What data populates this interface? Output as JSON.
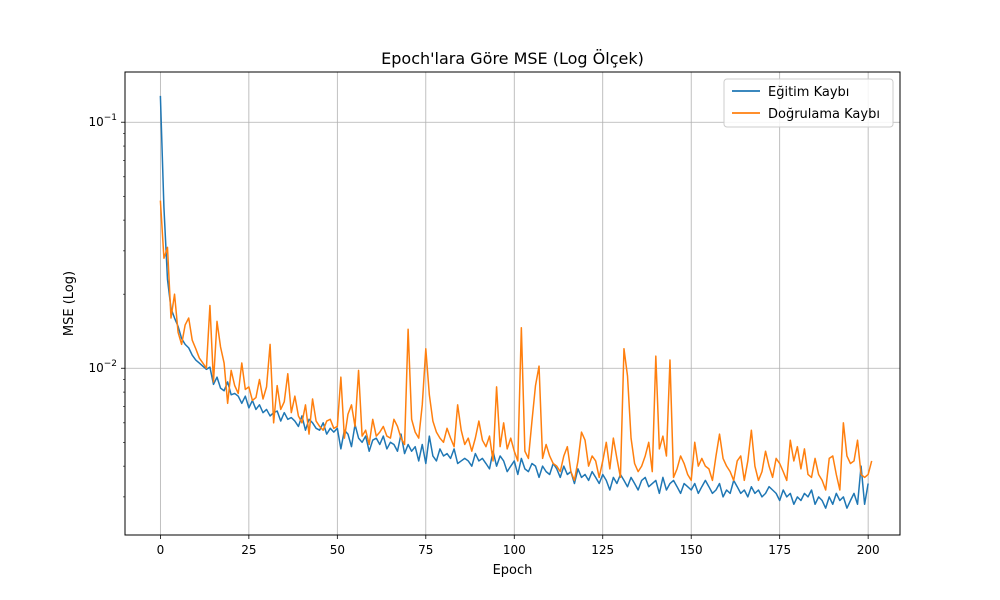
{
  "chart_data": {
    "type": "line",
    "title": "Epoch'lara Göre MSE (Log Ölçek)",
    "xlabel": "Epoch",
    "ylabel": "MSE (Log)",
    "xlim": [
      -10,
      209
    ],
    "ylim": [
      0.0021,
      0.16
    ],
    "yscale": "log",
    "grid": true,
    "legend_position": "top-right",
    "x_ticks": [
      0,
      25,
      50,
      75,
      100,
      125,
      150,
      175,
      200
    ],
    "x_tick_labels": [
      "0",
      "25",
      "50",
      "75",
      "100",
      "125",
      "150",
      "175",
      "200"
    ],
    "y_ticks": [
      0.01,
      0.1
    ],
    "y_tick_labels": [
      {
        "base": "10",
        "exp": "−2"
      },
      {
        "base": "10",
        "exp": "−1"
      }
    ],
    "series": [
      {
        "name": "Eğitim Kaybı",
        "color": "#1f77b4",
        "x_start": 0,
        "values": [
          0.128,
          0.045,
          0.023,
          0.0175,
          0.016,
          0.0148,
          0.0132,
          0.0125,
          0.0121,
          0.0113,
          0.0108,
          0.0105,
          0.0102,
          0.0099,
          0.0101,
          0.0086,
          0.0092,
          0.0083,
          0.0081,
          0.0088,
          0.0078,
          0.0079,
          0.0077,
          0.0072,
          0.0077,
          0.0069,
          0.0074,
          0.0068,
          0.0071,
          0.0066,
          0.0068,
          0.0064,
          0.0066,
          0.0067,
          0.0061,
          0.0066,
          0.0062,
          0.0063,
          0.0061,
          0.0058,
          0.0064,
          0.0056,
          0.0062,
          0.006,
          0.0057,
          0.0056,
          0.006,
          0.0054,
          0.0057,
          0.0055,
          0.0057,
          0.0047,
          0.0056,
          0.0054,
          0.0048,
          0.0059,
          0.0052,
          0.005,
          0.0053,
          0.0046,
          0.0051,
          0.0052,
          0.0049,
          0.0053,
          0.0047,
          0.005,
          0.0049,
          0.0046,
          0.0054,
          0.0045,
          0.0049,
          0.0046,
          0.0048,
          0.0042,
          0.0049,
          0.0041,
          0.0053,
          0.0044,
          0.0042,
          0.0047,
          0.0044,
          0.0045,
          0.0043,
          0.0047,
          0.0041,
          0.0042,
          0.0043,
          0.0042,
          0.004,
          0.0045,
          0.0042,
          0.0043,
          0.0041,
          0.0039,
          0.0046,
          0.004,
          0.0044,
          0.0042,
          0.0038,
          0.004,
          0.0042,
          0.0037,
          0.0043,
          0.0039,
          0.0038,
          0.0041,
          0.004,
          0.0036,
          0.004,
          0.0038,
          0.0037,
          0.0041,
          0.0039,
          0.0036,
          0.004,
          0.0037,
          0.0038,
          0.0034,
          0.0039,
          0.0036,
          0.0037,
          0.0035,
          0.0038,
          0.0036,
          0.0034,
          0.0037,
          0.0035,
          0.0032,
          0.0036,
          0.0034,
          0.0037,
          0.0035,
          0.0033,
          0.0036,
          0.0034,
          0.0032,
          0.0035,
          0.0036,
          0.0033,
          0.0034,
          0.0035,
          0.0031,
          0.0036,
          0.0032,
          0.0034,
          0.0035,
          0.0033,
          0.0031,
          0.0034,
          0.0033,
          0.0032,
          0.0034,
          0.0031,
          0.0033,
          0.0035,
          0.0033,
          0.0031,
          0.0032,
          0.0034,
          0.003,
          0.0032,
          0.0031,
          0.0035,
          0.0033,
          0.0031,
          0.0032,
          0.003,
          0.0033,
          0.0031,
          0.0032,
          0.003,
          0.0031,
          0.0033,
          0.0032,
          0.0031,
          0.0029,
          0.0032,
          0.003,
          0.0031,
          0.0028,
          0.003,
          0.0029,
          0.0031,
          0.003,
          0.0032,
          0.0028,
          0.003,
          0.0029,
          0.0027,
          0.003,
          0.0028,
          0.0031,
          0.0029,
          0.003,
          0.0027,
          0.0029,
          0.0031,
          0.0028,
          0.004,
          0.0028,
          0.0034
        ]
      },
      {
        "name": "Doğrulama Kaybı",
        "color": "#ff7f0e",
        "x_start": 0,
        "values": [
          0.048,
          0.028,
          0.031,
          0.016,
          0.02,
          0.014,
          0.0125,
          0.015,
          0.016,
          0.013,
          0.012,
          0.011,
          0.0105,
          0.01,
          0.018,
          0.0088,
          0.0155,
          0.0122,
          0.0105,
          0.0072,
          0.0098,
          0.0085,
          0.0079,
          0.0105,
          0.0082,
          0.0084,
          0.0074,
          0.0076,
          0.009,
          0.0075,
          0.0084,
          0.0125,
          0.006,
          0.0085,
          0.0068,
          0.0073,
          0.0095,
          0.0066,
          0.0077,
          0.0064,
          0.006,
          0.0071,
          0.0054,
          0.0075,
          0.0061,
          0.0058,
          0.0056,
          0.0061,
          0.0062,
          0.0057,
          0.0058,
          0.0092,
          0.0052,
          0.0065,
          0.0071,
          0.0058,
          0.0098,
          0.0053,
          0.0056,
          0.0049,
          0.0062,
          0.0053,
          0.0055,
          0.0058,
          0.0053,
          0.0052,
          0.0062,
          0.0058,
          0.0052,
          0.0049,
          0.0144,
          0.0062,
          0.0055,
          0.0052,
          0.0071,
          0.012,
          0.0078,
          0.0061,
          0.0055,
          0.0052,
          0.005,
          0.0057,
          0.0052,
          0.0048,
          0.0071,
          0.0056,
          0.0049,
          0.0052,
          0.0046,
          0.0052,
          0.0061,
          0.0051,
          0.0048,
          0.0053,
          0.0042,
          0.0084,
          0.0048,
          0.006,
          0.0047,
          0.0052,
          0.0046,
          0.0042,
          0.0146,
          0.0046,
          0.0043,
          0.0061,
          0.0085,
          0.0102,
          0.0043,
          0.0049,
          0.0044,
          0.0041,
          0.004,
          0.0038,
          0.0044,
          0.0048,
          0.0038,
          0.0035,
          0.0042,
          0.0055,
          0.0051,
          0.004,
          0.0044,
          0.0042,
          0.0036,
          0.0042,
          0.005,
          0.0039,
          0.0052,
          0.0043,
          0.0036,
          0.012,
          0.0093,
          0.0052,
          0.0041,
          0.0038,
          0.004,
          0.0044,
          0.005,
          0.0038,
          0.0112,
          0.0047,
          0.0053,
          0.0044,
          0.0108,
          0.0036,
          0.0039,
          0.0044,
          0.0041,
          0.0037,
          0.0035,
          0.005,
          0.004,
          0.0043,
          0.004,
          0.0039,
          0.0035,
          0.0044,
          0.0054,
          0.0043,
          0.004,
          0.0038,
          0.0035,
          0.0042,
          0.0044,
          0.0035,
          0.0042,
          0.0056,
          0.004,
          0.0035,
          0.0038,
          0.0046,
          0.004,
          0.0036,
          0.0043,
          0.0041,
          0.0038,
          0.0035,
          0.0051,
          0.0042,
          0.0048,
          0.0039,
          0.0047,
          0.0037,
          0.0036,
          0.0043,
          0.0037,
          0.0035,
          0.0032,
          0.0043,
          0.0044,
          0.0037,
          0.0032,
          0.006,
          0.0044,
          0.0041,
          0.0042,
          0.0051,
          0.0037,
          0.0036,
          0.0037,
          0.0042
        ]
      }
    ]
  }
}
